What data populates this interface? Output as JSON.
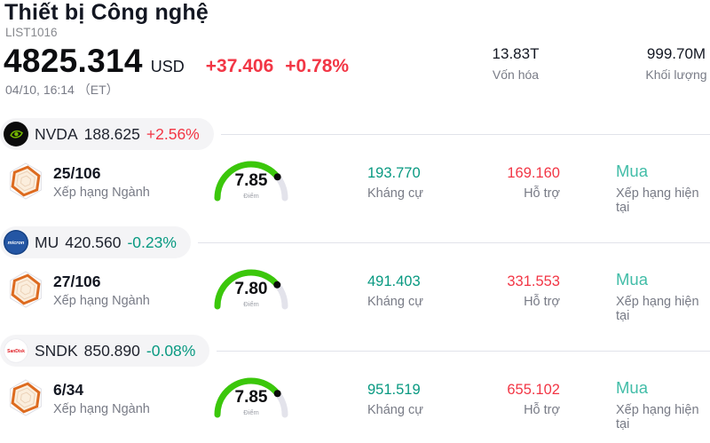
{
  "header": {
    "title": "Thiết bị Công nghệ",
    "list_id": "LIST1016",
    "price": "4825.314",
    "currency": "USD",
    "change_abs": "+37.406",
    "change_pct": "+0.78%",
    "timestamp": "04/10, 16:14 （ET）",
    "stats": [
      {
        "value": "13.83T",
        "label": "Vốn hóa"
      },
      {
        "value": "999.70M",
        "label": "Khối lượng"
      }
    ]
  },
  "labels": {
    "sector_rank": "Xếp hạng Ngành",
    "resistance": "Kháng cự",
    "support": "Hỗ trợ",
    "current_rating": "Xếp hạng hiện tại",
    "score": "Điểm"
  },
  "gauge": {
    "max": 10,
    "arc_color": "#3bc70b",
    "track_color": "#e3e3eb"
  },
  "colors": {
    "up_red": "#f23645",
    "down_teal": "#089981",
    "buy_teal": "#42bda8",
    "pill_bg": "#f4f4f6",
    "divider": "#e1e3ea"
  },
  "stocks": [
    {
      "symbol": "NVDA",
      "price": "188.625",
      "change_pct": "+2.56%",
      "change_color": "#f23645",
      "logo": "nvidia-logo",
      "rank": "25/106",
      "score": "7.85",
      "resistance": "193.770",
      "support": "169.160",
      "rating": "Mua"
    },
    {
      "symbol": "MU",
      "price": "420.560",
      "change_pct": "-0.23%",
      "change_color": "#089981",
      "logo": "micron-logo",
      "rank": "27/106",
      "score": "7.80",
      "resistance": "491.403",
      "support": "331.553",
      "rating": "Mua"
    },
    {
      "symbol": "SNDK",
      "price": "850.890",
      "change_pct": "-0.08%",
      "change_color": "#089981",
      "logo": "sandisk-logo",
      "rank": "6/34",
      "score": "7.85",
      "resistance": "951.519",
      "support": "655.102",
      "rating": "Mua"
    }
  ]
}
